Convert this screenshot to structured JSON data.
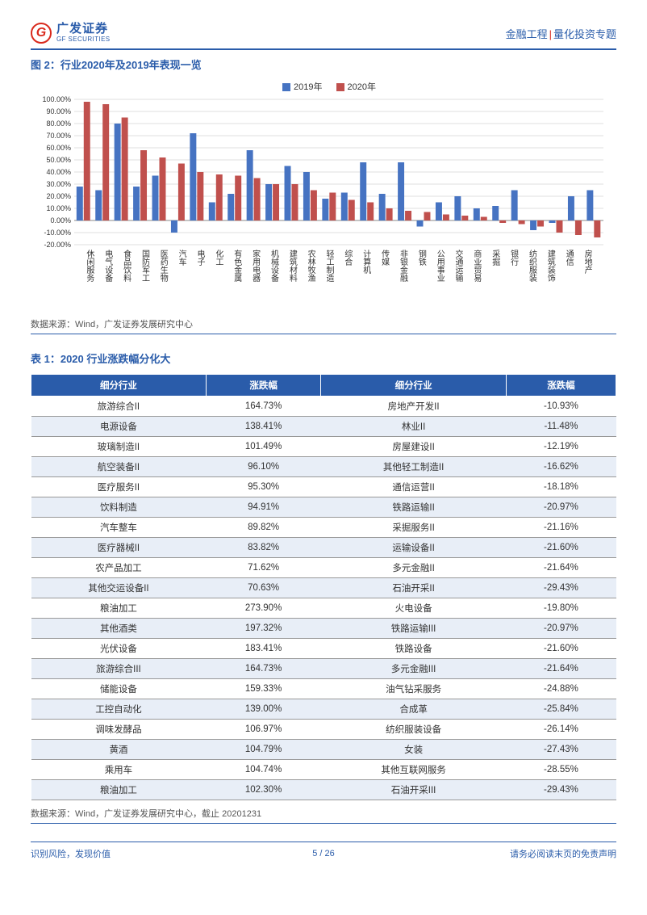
{
  "header": {
    "logo_cn": "广发证券",
    "logo_en": "GF SECURITIES",
    "logo_letter": "G",
    "right_a": "金融工程",
    "right_b": "量化投资专题"
  },
  "figure": {
    "title": "图 2：行业2020年及2019年表现一览",
    "legend_a": "2019年",
    "legend_b": "2020年",
    "color_2019": "#4673c2",
    "color_2020": "#c0504d",
    "bg": "#ffffff",
    "grid_color": "#bfbfbf",
    "ylim": [
      -20,
      100
    ],
    "ytick_step": 10,
    "yticks": [
      "100.00%",
      "90.00%",
      "80.00%",
      "70.00%",
      "60.00%",
      "50.00%",
      "40.00%",
      "30.00%",
      "20.00%",
      "10.00%",
      "0.00%",
      "-10.00%",
      "-20.00%"
    ],
    "categories": [
      "休闲服务",
      "电气设备",
      "食品饮料",
      "国防军工",
      "医药生物",
      "汽车",
      "电子",
      "化工",
      "有色金属",
      "家用电器",
      "机械设备",
      "建筑材料",
      "农林牧渔",
      "轻工制造",
      "综合",
      "计算机",
      "传媒",
      "非银金融",
      "钢铁",
      "公用事业",
      "交通运输",
      "商业贸易",
      "采掘",
      "银行",
      "纺织服装",
      "建筑装饰",
      "通信",
      "房地产"
    ],
    "v2019": [
      28,
      25,
      80,
      28,
      37,
      -10,
      72,
      15,
      22,
      58,
      30,
      45,
      40,
      18,
      23,
      48,
      22,
      48,
      -5,
      15,
      20,
      10,
      12,
      25,
      -8,
      -2,
      20,
      25
    ],
    "v2020": [
      98,
      96,
      85,
      58,
      52,
      47,
      40,
      38,
      37,
      35,
      30,
      30,
      25,
      23,
      17,
      15,
      10,
      8,
      7,
      5,
      4,
      3,
      -2,
      -3,
      -5,
      -10,
      -12,
      -14
    ],
    "source": "数据来源：Wind，广发证券发展研究中心"
  },
  "table": {
    "title": "表 1：2020 行业涨跌幅分化大",
    "headers": [
      "细分行业",
      "涨跌幅",
      "细分行业",
      "涨跌幅"
    ],
    "rows": [
      [
        "旅游综合II",
        "164.73%",
        "房地产开发II",
        "-10.93%"
      ],
      [
        "电源设备",
        "138.41%",
        "林业II",
        "-11.48%"
      ],
      [
        "玻璃制造II",
        "101.49%",
        "房屋建设II",
        "-12.19%"
      ],
      [
        "航空装备II",
        "96.10%",
        "其他轻工制造II",
        "-16.62%"
      ],
      [
        "医疗服务II",
        "95.30%",
        "通信运营II",
        "-18.18%"
      ],
      [
        "饮料制造",
        "94.91%",
        "铁路运输II",
        "-20.97%"
      ],
      [
        "汽车整车",
        "89.82%",
        "采掘服务II",
        "-21.16%"
      ],
      [
        "医疗器械II",
        "83.82%",
        "运输设备II",
        "-21.60%"
      ],
      [
        "农产品加工",
        "71.62%",
        "多元金融II",
        "-21.64%"
      ],
      [
        "其他交运设备II",
        "70.63%",
        "石油开采II",
        "-29.43%"
      ],
      [
        "粮油加工",
        "273.90%",
        "火电设备",
        "-19.80%"
      ],
      [
        "其他酒类",
        "197.32%",
        "铁路运输III",
        "-20.97%"
      ],
      [
        "光伏设备",
        "183.41%",
        "铁路设备",
        "-21.60%"
      ],
      [
        "旅游综合III",
        "164.73%",
        "多元金融III",
        "-21.64%"
      ],
      [
        "储能设备",
        "159.33%",
        "油气钻采服务",
        "-24.88%"
      ],
      [
        "工控自动化",
        "139.00%",
        "合成革",
        "-25.84%"
      ],
      [
        "调味发酵品",
        "106.97%",
        "纺织服装设备",
        "-26.14%"
      ],
      [
        "黄酒",
        "104.79%",
        "女装",
        "-27.43%"
      ],
      [
        "乘用车",
        "104.74%",
        "其他互联网服务",
        "-28.55%"
      ],
      [
        "粮油加工",
        "102.30%",
        "石油开采III",
        "-29.43%"
      ]
    ],
    "source": "数据来源：Wind，广发证券发展研究中心，截止 20201231"
  },
  "footer": {
    "left": "识别风险，发现价值",
    "right": "请务必阅读末页的免责声明",
    "page_cur": "5",
    "page_sep": " / ",
    "page_total": "26"
  }
}
